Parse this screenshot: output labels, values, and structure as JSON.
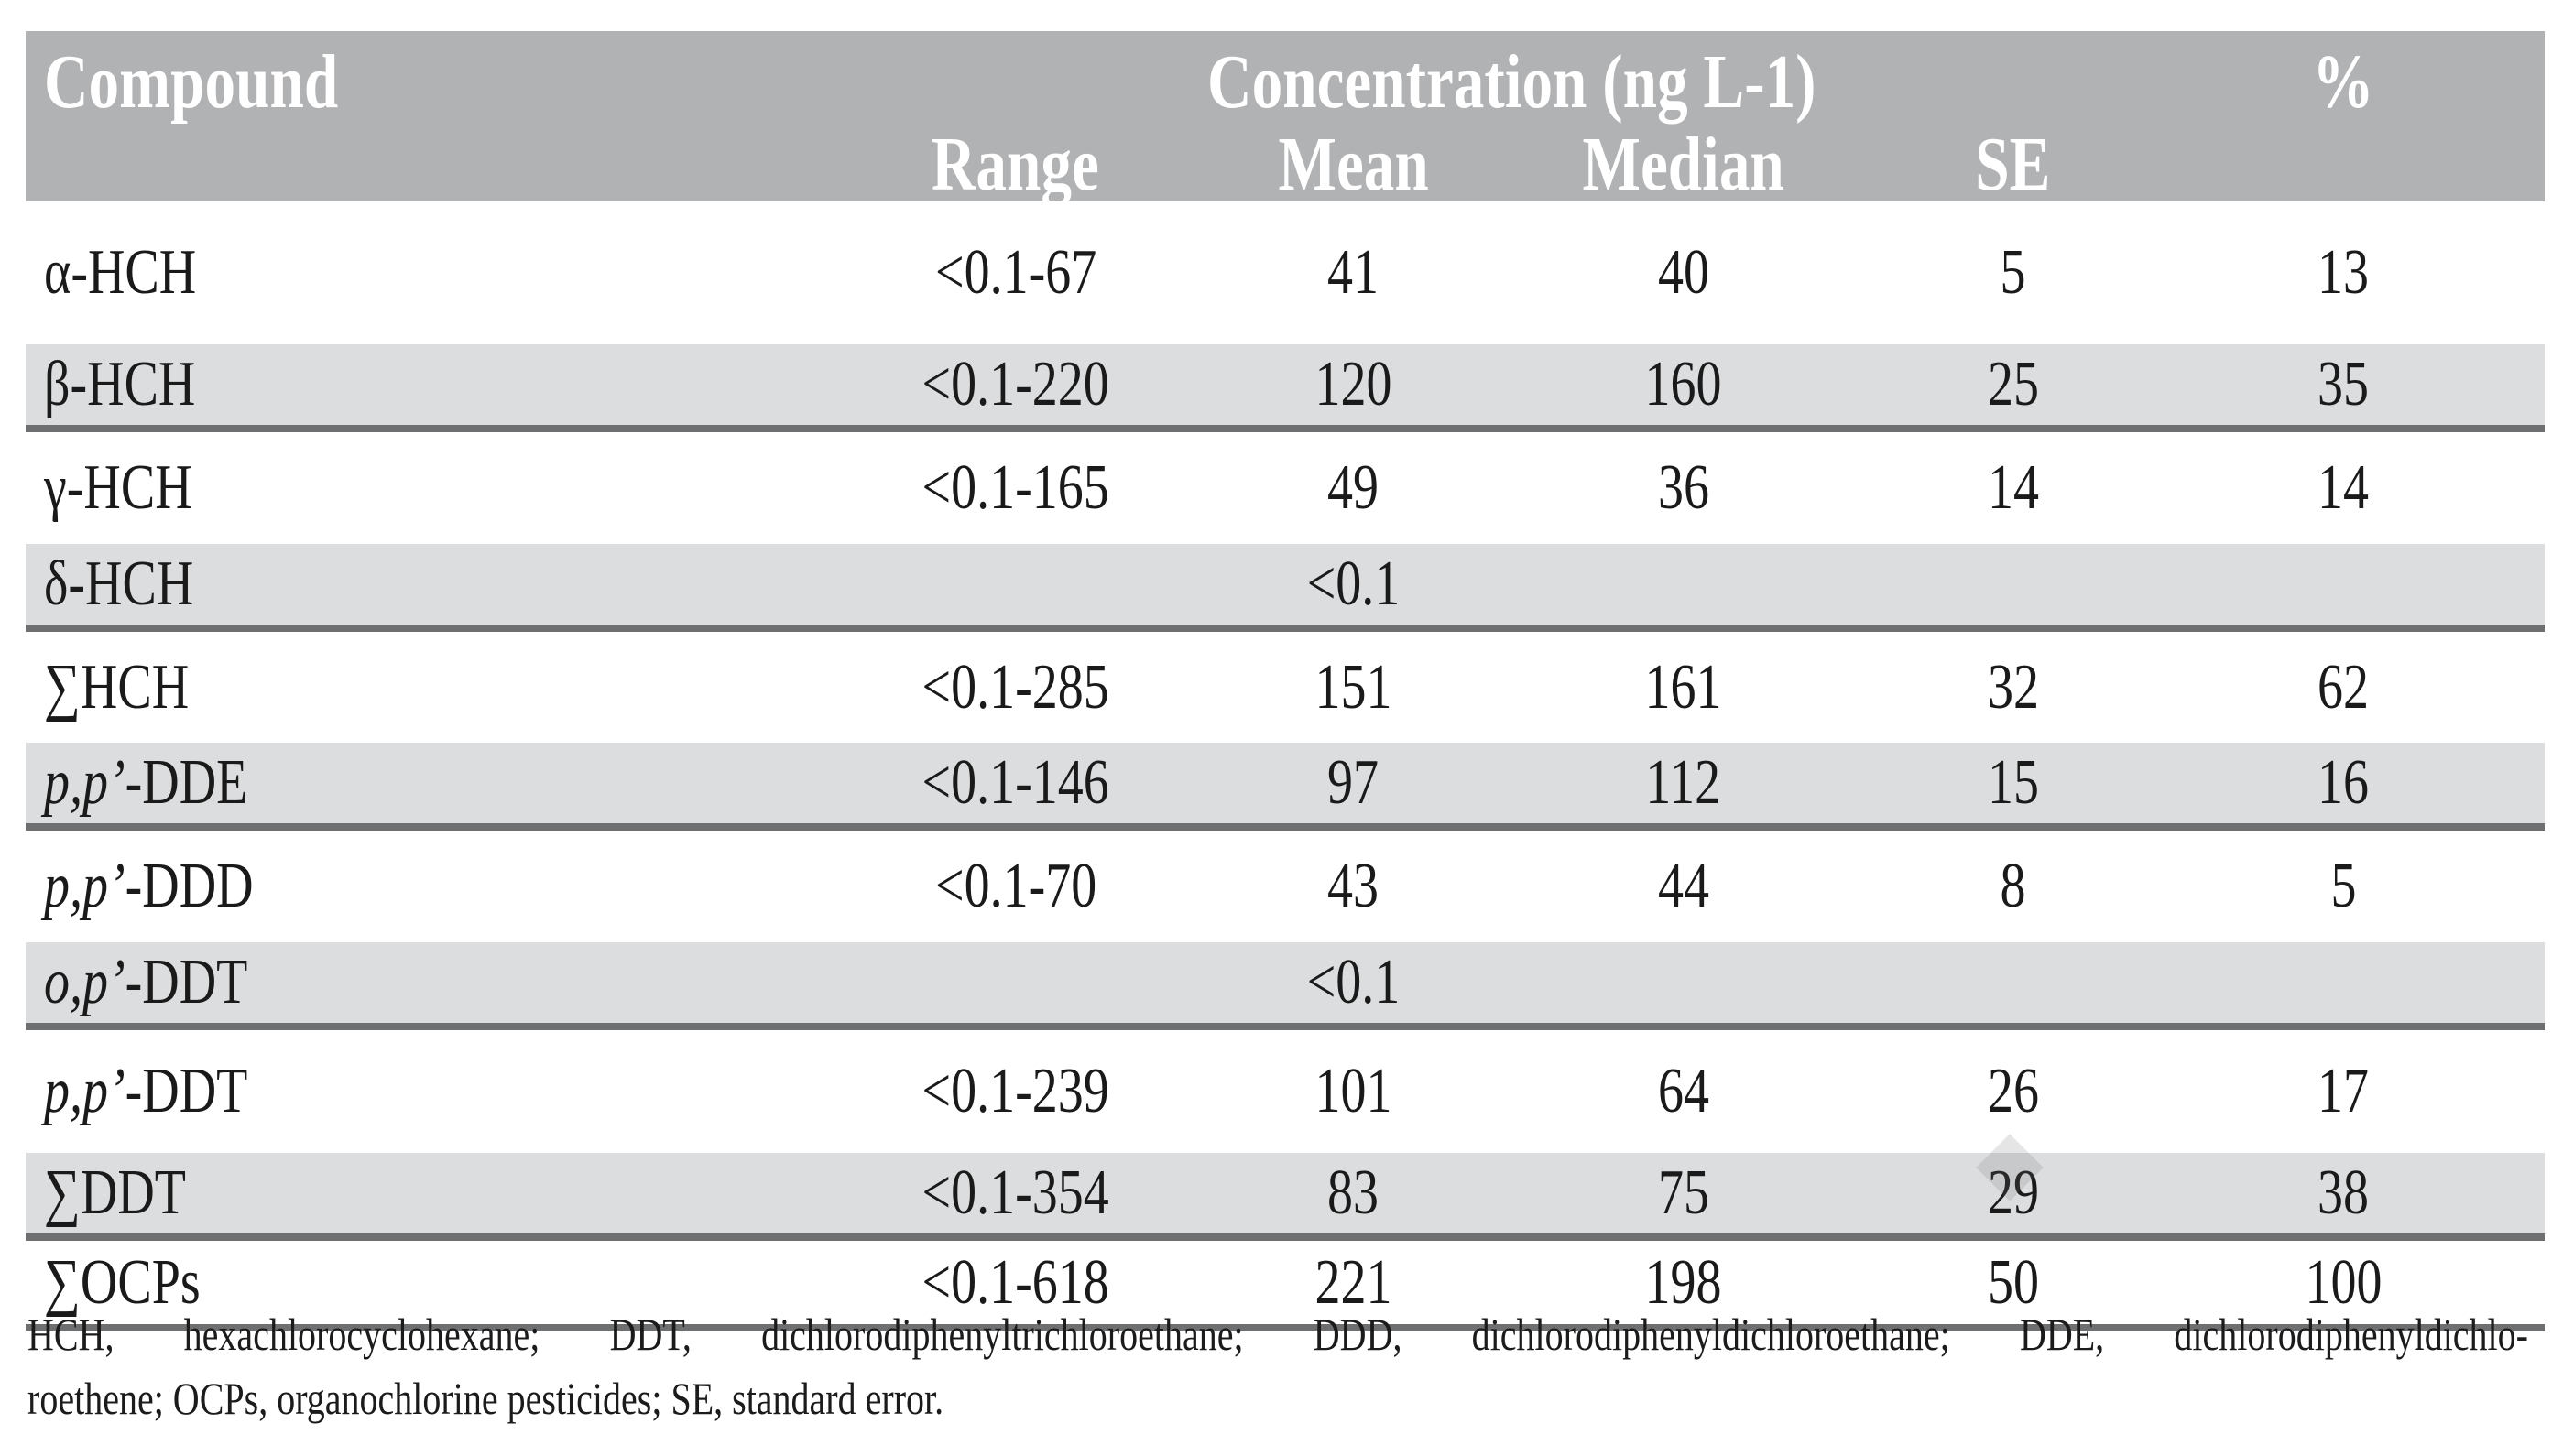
{
  "title": "Organochlorine pesticide concentrations table",
  "colors": {
    "header_bg": "#b1b2b4",
    "header_text": "#ffffff",
    "shaded_row_bg": "#dcddde",
    "rule_line": "#6e6f71",
    "body_text": "#1a1a1a",
    "watermark": "#d2d3d5"
  },
  "table": {
    "header": {
      "compound": "Compound",
      "concentration_group": "Concentration (ng L-1)",
      "percent": "%",
      "subheaders": [
        "Range",
        "Mean",
        "Median",
        "SE"
      ]
    },
    "rows": [
      {
        "compound_italic": "",
        "compound_plain": "α-HCH",
        "range": "<0.1-67",
        "mean": "41",
        "median": "40",
        "se": "5",
        "percent": "13",
        "shaded": false
      },
      {
        "compound_italic": "",
        "compound_plain": "β-HCH",
        "range": "<0.1-220",
        "mean": "120",
        "median": "160",
        "se": "25",
        "percent": "35",
        "shaded": true
      },
      {
        "compound_italic": "",
        "compound_plain": "γ-HCH",
        "range": "<0.1-165",
        "mean": "49",
        "median": "36",
        "se": "14",
        "percent": "14",
        "shaded": false
      },
      {
        "compound_italic": "",
        "compound_plain": "δ-HCH",
        "range": "",
        "mean": "<0.1",
        "median": "",
        "se": "",
        "percent": "",
        "shaded": true
      },
      {
        "compound_italic": "",
        "compound_plain": "∑HCH",
        "range": "<0.1-285",
        "mean": "151",
        "median": "161",
        "se": "32",
        "percent": "62",
        "shaded": false
      },
      {
        "compound_italic": "p,p’",
        "compound_plain": "-DDE",
        "range": "<0.1-146",
        "mean": "97",
        "median": "112",
        "se": "15",
        "percent": "16",
        "shaded": true
      },
      {
        "compound_italic": "p,p’",
        "compound_plain": "-DDD",
        "range": "<0.1-70",
        "mean": "43",
        "median": "44",
        "se": "8",
        "percent": "5",
        "shaded": false
      },
      {
        "compound_italic": "o,p’",
        "compound_plain": "-DDT",
        "range": "",
        "mean": "<0.1",
        "median": "",
        "se": "",
        "percent": "",
        "shaded": true
      },
      {
        "compound_italic": "p,p’",
        "compound_plain": "-DDT",
        "range": "<0.1-239",
        "mean": "101",
        "median": "64",
        "se": "26",
        "percent": "17",
        "shaded": false
      },
      {
        "compound_italic": "",
        "compound_plain": "∑DDT",
        "range": "<0.1-354",
        "mean": "83",
        "median": "75",
        "se": "29",
        "percent": "38",
        "shaded": true
      },
      {
        "compound_italic": "",
        "compound_plain": "∑OCPs",
        "range": "<0.1-618",
        "mean": "221",
        "median": "198",
        "se": "50",
        "percent": "100",
        "shaded": false
      }
    ],
    "footnote_lines": [
      "HCH, hexachlorocyclohexane; DDT, dichlorodiphenyltrichloroethane; DDD, dichlorodiphenyldichloroethane; DDE, dichlorodiphenyldichlo-",
      "roethene; OCPs, organochlorine pesticides; SE, standard error."
    ]
  }
}
